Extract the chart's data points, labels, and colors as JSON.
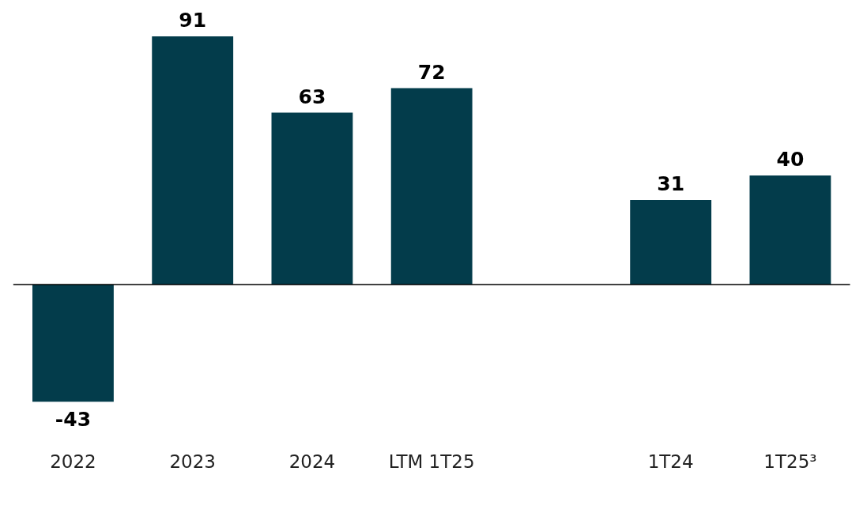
{
  "chart_data": {
    "type": "bar",
    "categories": [
      "2022",
      "2023",
      "2024",
      "LTM 1T25",
      null,
      "1T24",
      "1T25³"
    ],
    "values": [
      -43,
      91,
      63,
      72,
      null,
      31,
      40
    ],
    "color": "#033c4b",
    "data_labels": true,
    "grid": false,
    "legend": false
  }
}
